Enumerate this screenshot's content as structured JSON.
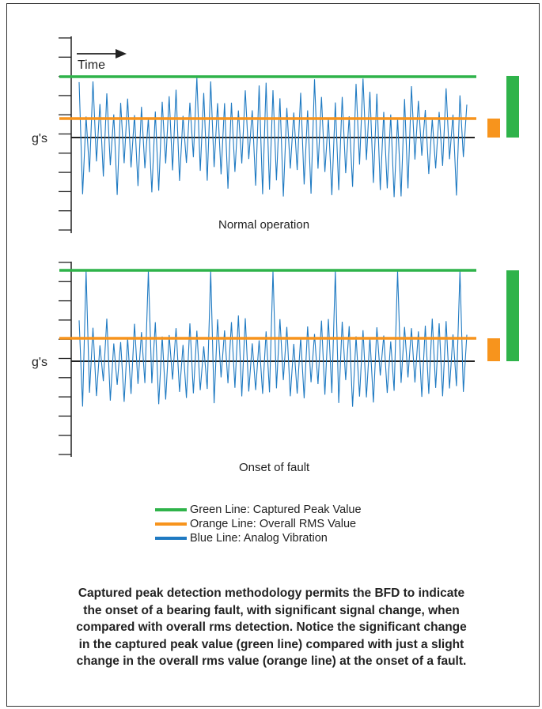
{
  "time_label": "Time",
  "panels": [
    {
      "y_label": "g's",
      "title": "Normal operation"
    },
    {
      "y_label": "g's",
      "title": "Onset of fault"
    }
  ],
  "legend": [
    {
      "label": "Green Line: Captured Peak Value",
      "color": "#2fb34a"
    },
    {
      "label": "Orange Line: Overall RMS Value",
      "color": "#f7941d"
    },
    {
      "label": "Blue Line: Analog Vibration",
      "color": "#1f7ac2"
    }
  ],
  "caption_lines": [
    "Captured peak detection methodology permits the BFD to indicate",
    "the onset of a bearing fault, with significant signal change, when",
    "compared with overall rms detection. Notice the significant change",
    "in the captured peak value (green line) compared with just a slight",
    "change in the overall rms value (orange line) at the onset of a fault."
  ],
  "colors": {
    "peak": "#2fb34a",
    "rms": "#f7941d",
    "vibration": "#1f7ac2",
    "axis": "#222222"
  }
}
